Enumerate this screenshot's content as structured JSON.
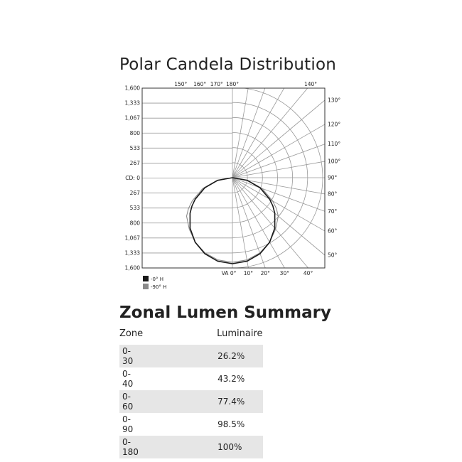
{
  "title": "Polar Candela Distribution",
  "chart_data": {
    "type": "polar",
    "title": "Polar Candela Distribution",
    "radial_unit_label": "CD: 0",
    "radial_ticks": [
      "1,600",
      "1,333",
      "1,067",
      "800",
      "533",
      "267",
      "CD: 0",
      "267",
      "533",
      "800",
      "1,067",
      "1,333",
      "1,600"
    ],
    "radial_values": [
      267,
      533,
      800,
      1067,
      1333,
      1600
    ],
    "rmax": 1600,
    "angle_labels_top": [
      "180°",
      "170°",
      "160°",
      "150°",
      "140°"
    ],
    "angle_labels_right": [
      "130°",
      "120°",
      "110°",
      "100°",
      "90°",
      "80°",
      "70°",
      "60°",
      "50°"
    ],
    "angle_labels_bottom": [
      "VA 0°",
      "10°",
      "20°",
      "30°",
      "40°"
    ],
    "grid": true,
    "legend_position": "bottom-left",
    "angles": [
      0,
      10,
      20,
      30,
      40,
      50,
      55,
      60,
      70,
      80,
      90
    ],
    "series": [
      {
        "name": "-0° H",
        "color": "#1a1a1a",
        "values": [
          1525,
          1502,
          1433,
          1321,
          1168,
          980,
          875,
          763,
          522,
          265,
          0
        ]
      },
      {
        "name": "-90° H",
        "color": "#8a8a8a",
        "values": [
          1500,
          1480,
          1420,
          1320,
          1190,
          1060,
          950,
          820,
          560,
          280,
          0
        ]
      }
    ]
  },
  "zonal": {
    "title": "Zonal Lumen Summary",
    "headers": [
      "Zone",
      "Luminaire"
    ],
    "rows": [
      [
        "0-30",
        "26.2%"
      ],
      [
        "0-40",
        "43.2%"
      ],
      [
        "0-60",
        "77.4%"
      ],
      [
        "0-90",
        "98.5%"
      ],
      [
        "0-180",
        "100%"
      ]
    ]
  }
}
